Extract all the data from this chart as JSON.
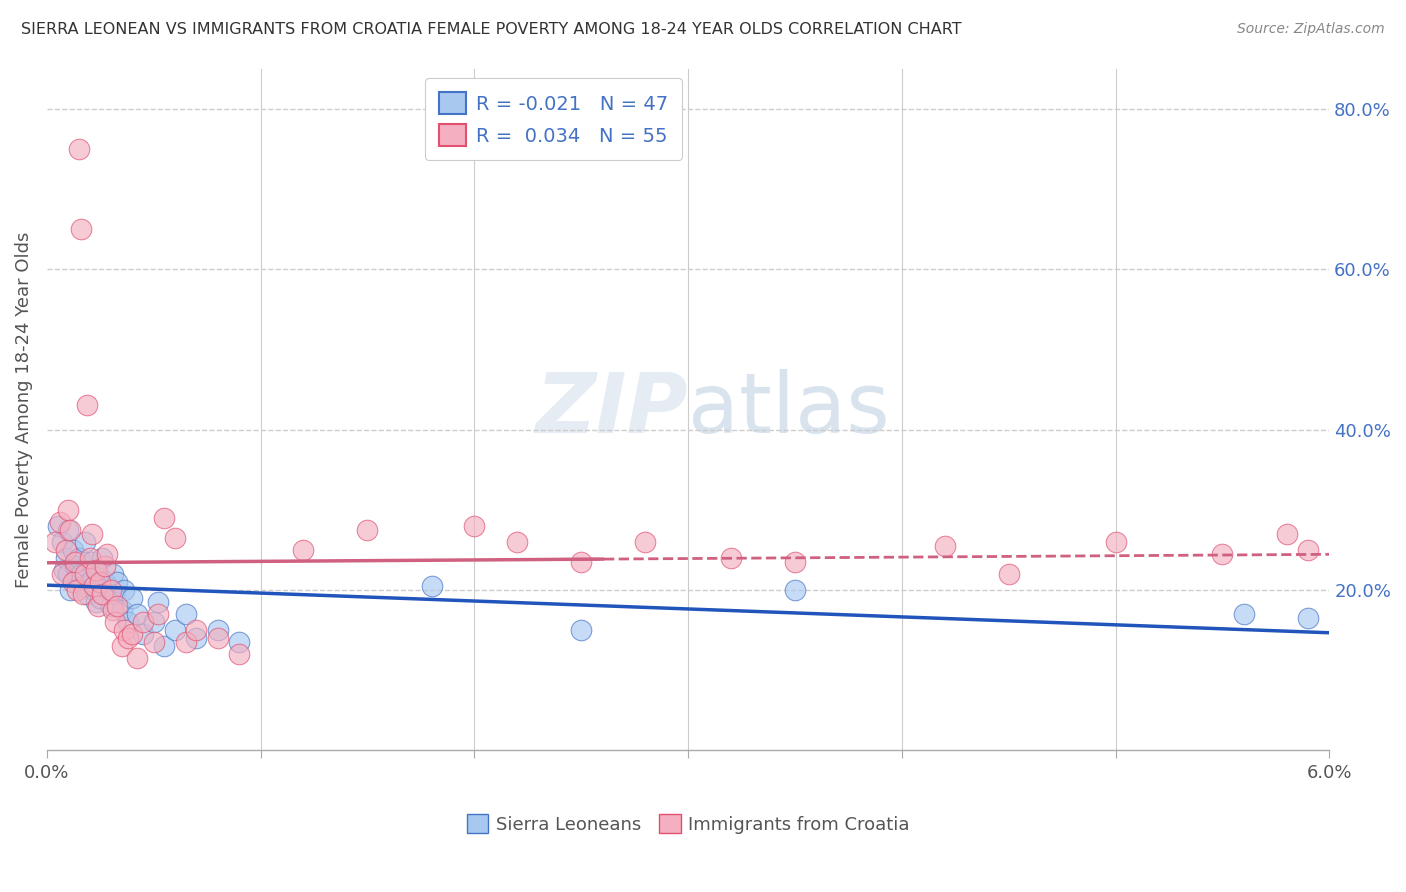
{
  "title": "SIERRA LEONEAN VS IMMIGRANTS FROM CROATIA FEMALE POVERTY AMONG 18-24 YEAR OLDS CORRELATION CHART",
  "source": "Source: ZipAtlas.com",
  "ylabel": "Female Poverty Among 18-24 Year Olds",
  "xlim": [
    0.0,
    6.0
  ],
  "ylim": [
    0.0,
    85.0
  ],
  "ytick_vals": [
    20.0,
    40.0,
    60.0,
    80.0
  ],
  "ytick_labels": [
    "20.0%",
    "40.0%",
    "60.0%",
    "80.0%"
  ],
  "xtick_vals": [
    0.0,
    1.0,
    2.0,
    3.0,
    4.0,
    5.0,
    6.0
  ],
  "xtick_labels": [
    "0.0%",
    "",
    "",
    "",
    "",
    "",
    "6.0%"
  ],
  "legend_entries": [
    {
      "r": "R = -0.021",
      "n": "N = 47",
      "color_face": "#A8C8F0",
      "color_edge": "#4472C4"
    },
    {
      "r": "R =  0.034",
      "n": "N = 55",
      "color_face": "#F4B0C0",
      "color_edge": "#E05070"
    }
  ],
  "color_blue": "#A8C8F0",
  "color_pink": "#F4B0C0",
  "color_blue_dark": "#4472C4",
  "color_pink_dark": "#E05070",
  "color_pink_line": "#D06080",
  "color_blue_line": "#2255BB",
  "blue_x": [
    0.05,
    0.07,
    0.08,
    0.09,
    0.1,
    0.1,
    0.11,
    0.12,
    0.13,
    0.14,
    0.15,
    0.16,
    0.17,
    0.18,
    0.19,
    0.2,
    0.21,
    0.22,
    0.23,
    0.24,
    0.25,
    0.26,
    0.27,
    0.28,
    0.3,
    0.31,
    0.32,
    0.33,
    0.35,
    0.36,
    0.38,
    0.4,
    0.42,
    0.45,
    0.5,
    0.52,
    0.55,
    0.6,
    0.65,
    0.7,
    0.8,
    0.9,
    1.8,
    2.5,
    3.5,
    5.6,
    5.9
  ],
  "blue_y": [
    28.0,
    26.0,
    22.5,
    24.0,
    27.5,
    22.0,
    20.0,
    25.0,
    23.0,
    21.5,
    24.0,
    22.0,
    20.5,
    26.0,
    19.5,
    21.0,
    23.5,
    20.0,
    18.5,
    22.0,
    19.0,
    24.0,
    21.0,
    20.5,
    18.0,
    22.0,
    19.5,
    21.0,
    17.5,
    20.0,
    16.0,
    19.0,
    17.0,
    14.5,
    16.0,
    18.5,
    13.0,
    15.0,
    17.0,
    14.0,
    15.0,
    13.5,
    20.5,
    15.0,
    20.0,
    17.0,
    16.5
  ],
  "pink_x": [
    0.04,
    0.06,
    0.07,
    0.09,
    0.1,
    0.11,
    0.12,
    0.13,
    0.14,
    0.15,
    0.16,
    0.17,
    0.18,
    0.19,
    0.2,
    0.21,
    0.22,
    0.23,
    0.24,
    0.25,
    0.26,
    0.27,
    0.28,
    0.3,
    0.31,
    0.32,
    0.33,
    0.35,
    0.36,
    0.38,
    0.4,
    0.42,
    0.45,
    0.5,
    0.52,
    0.55,
    0.6,
    0.65,
    0.7,
    0.8,
    0.9,
    1.2,
    1.5,
    2.0,
    2.2,
    2.5,
    2.8,
    3.2,
    3.5,
    4.2,
    4.5,
    5.0,
    5.5,
    5.8,
    5.9
  ],
  "pink_y": [
    26.0,
    28.5,
    22.0,
    25.0,
    30.0,
    27.5,
    21.0,
    23.5,
    20.0,
    75.0,
    65.0,
    19.5,
    22.0,
    43.0,
    24.0,
    27.0,
    20.5,
    22.5,
    18.0,
    21.0,
    19.5,
    23.0,
    24.5,
    20.0,
    17.5,
    16.0,
    18.0,
    13.0,
    15.0,
    14.0,
    14.5,
    11.5,
    16.0,
    13.5,
    17.0,
    29.0,
    26.5,
    13.5,
    15.0,
    14.0,
    12.0,
    25.0,
    27.5,
    28.0,
    26.0,
    23.5,
    26.0,
    24.0,
    23.5,
    25.5,
    22.0,
    26.0,
    24.5,
    27.0,
    25.0
  ],
  "background_color": "#FFFFFF",
  "grid_color": "#CCCCCC",
  "watermark": "ZIPAtlas",
  "watermark_color": "#E0E8F0"
}
